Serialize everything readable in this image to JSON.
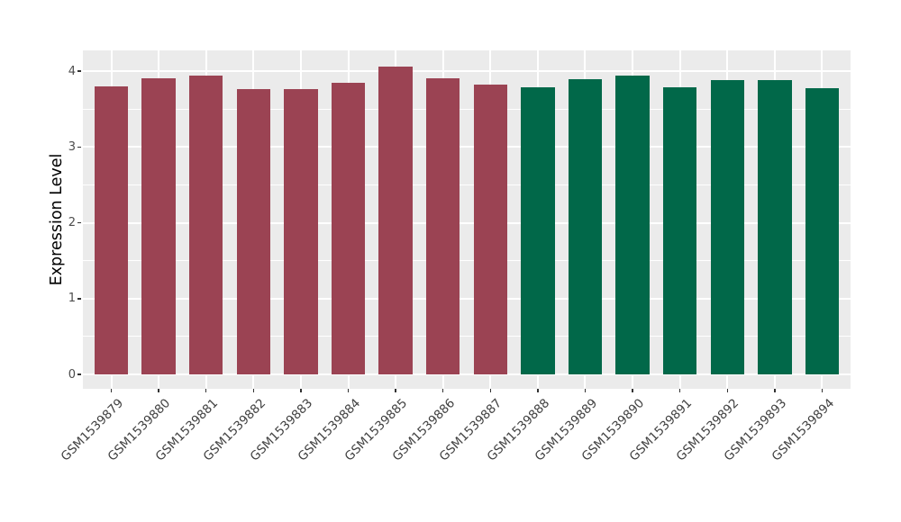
{
  "figure": {
    "background": "#FFFFFF",
    "panel_background": "#EBEBEB",
    "gridline_color": "#FFFFFF",
    "tick_mark_color": "#333333",
    "axis_text_color": "#4D4D4D",
    "axis_title_color": "#000000",
    "maroon": "#9B4353",
    "green": "#016849"
  },
  "chart_data": {
    "type": "bar",
    "title": "",
    "xlabel": "",
    "ylabel": "Expression Level",
    "ylim": [
      -0.2,
      4.27
    ],
    "yticks": [
      0,
      1,
      2,
      3,
      4
    ],
    "grid": "white major + minor horizontal lines, white vertical line at each category, on gray panel",
    "legend_position": "none",
    "x_tick_label_rotation_deg": 45,
    "categories": [
      "GSM1539879",
      "GSM1539880",
      "GSM1539881",
      "GSM1539882",
      "GSM1539883",
      "GSM1539884",
      "GSM1539885",
      "GSM1539886",
      "GSM1539887",
      "GSM1539888",
      "GSM1539889",
      "GSM1539890",
      "GSM1539891",
      "GSM1539892",
      "GSM1539893",
      "GSM1539894"
    ],
    "values": [
      3.8,
      3.91,
      3.94,
      3.77,
      3.76,
      3.85,
      4.06,
      3.91,
      3.82,
      3.79,
      3.9,
      3.94,
      3.79,
      3.88,
      3.88,
      3.78
    ],
    "bar_colors": [
      "#9B4353",
      "#9B4353",
      "#9B4353",
      "#9B4353",
      "#9B4353",
      "#9B4353",
      "#9B4353",
      "#9B4353",
      "#9B4353",
      "#016849",
      "#016849",
      "#016849",
      "#016849",
      "#016849",
      "#016849",
      "#016849"
    ]
  }
}
